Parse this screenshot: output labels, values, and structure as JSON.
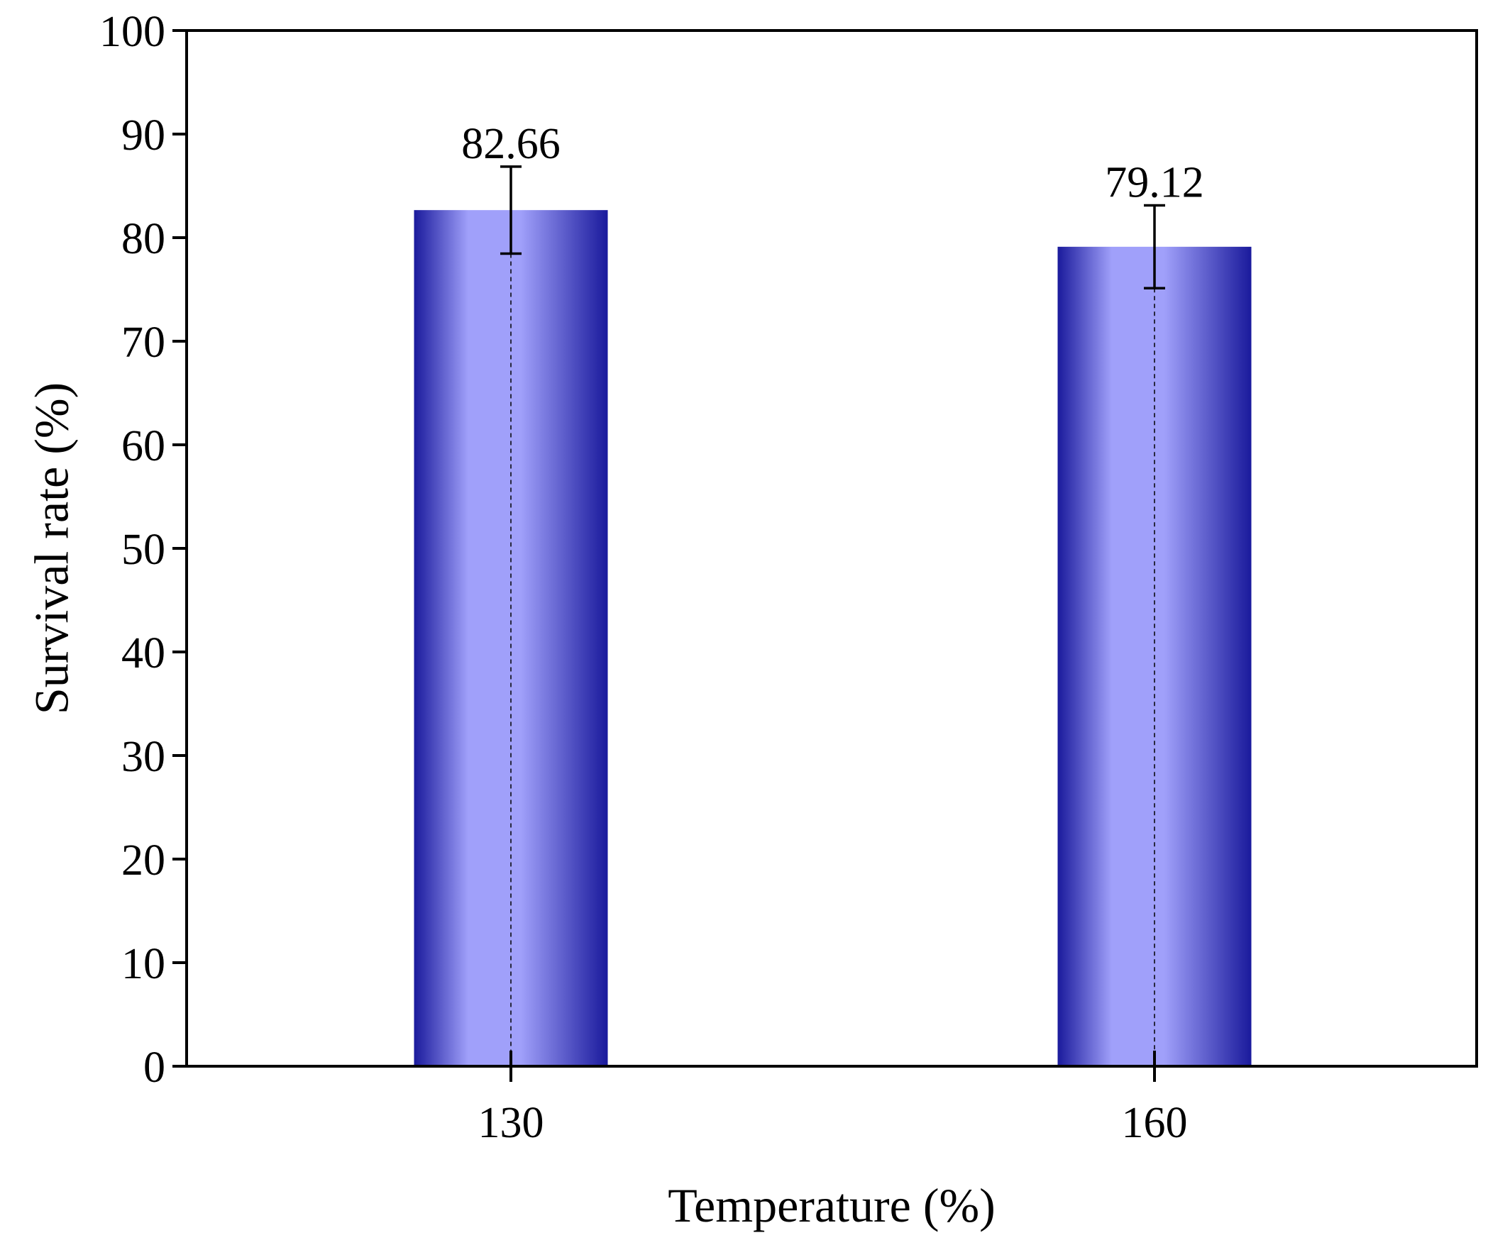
{
  "chart_data": {
    "type": "bar",
    "categories": [
      "130",
      "160"
    ],
    "values": [
      82.66,
      79.12
    ],
    "errors": [
      4.2,
      4.0
    ],
    "data_labels": [
      "82.66",
      "79.12"
    ],
    "xlabel": "Temperature (%)",
    "ylabel": "Survival rate (%)",
    "ylim": [
      0,
      100
    ],
    "yticks": [
      "0",
      "10",
      "20",
      "30",
      "40",
      "50",
      "60",
      "70",
      "80",
      "90",
      "100"
    ],
    "grid": false,
    "legend": "none",
    "colors": {
      "bar_edge": "#1a1a9c",
      "bar_center": "#a0a0fa",
      "axis": "#000000"
    }
  }
}
